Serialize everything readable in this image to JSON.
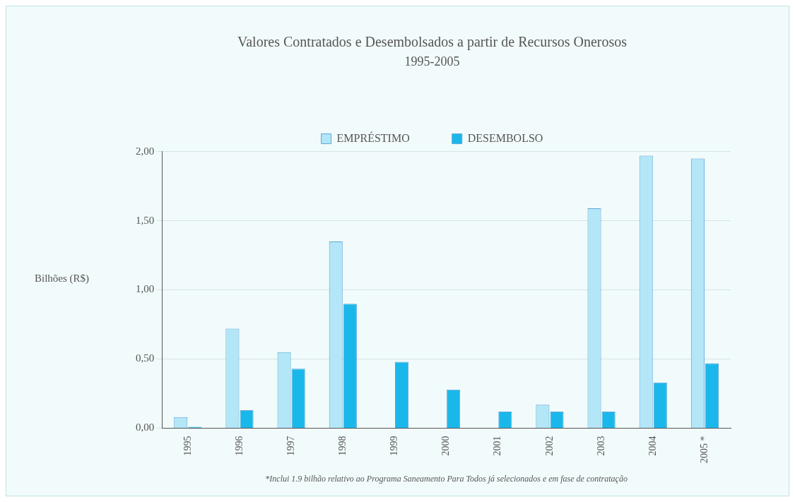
{
  "chart_data": {
    "type": "bar",
    "title": "Valores Contratados e Desembolsados a partir de Recursos Onerosos",
    "subtitle": "1995-2005",
    "ylabel": "Bilhões (R$)",
    "categories": [
      "1995",
      "1996",
      "1997",
      "1998",
      "1999",
      "2000",
      "2001",
      "2002",
      "2003",
      "2004",
      "2005 *"
    ],
    "series": [
      {
        "name": "EMPRÉSTIMO",
        "color": "#b3e6f7",
        "values": [
          0.08,
          0.72,
          0.55,
          1.35,
          0,
          0,
          0,
          0.17,
          1.59,
          1.97,
          1.95
        ]
      },
      {
        "name": "DESEMBOLSO",
        "color": "#1ab8ea",
        "values": [
          0.01,
          0.13,
          0.43,
          0.9,
          0.48,
          0.28,
          0.12,
          0.12,
          0.12,
          0.33,
          0.47
        ]
      }
    ],
    "ylim": [
      0,
      2
    ],
    "yticks": [
      {
        "value": 0,
        "label": "0,00"
      },
      {
        "value": 0.5,
        "label": "0,50"
      },
      {
        "value": 1,
        "label": "1,00"
      },
      {
        "value": 1.5,
        "label": "1,50"
      },
      {
        "value": 2,
        "label": "2,00"
      }
    ],
    "grid": "y",
    "legend": "top",
    "annotations": [
      "*Inclui 1.9 bilhão relativo ao Programa Saneamento Para Todos já selecionados e em fase de contratação"
    ]
  }
}
